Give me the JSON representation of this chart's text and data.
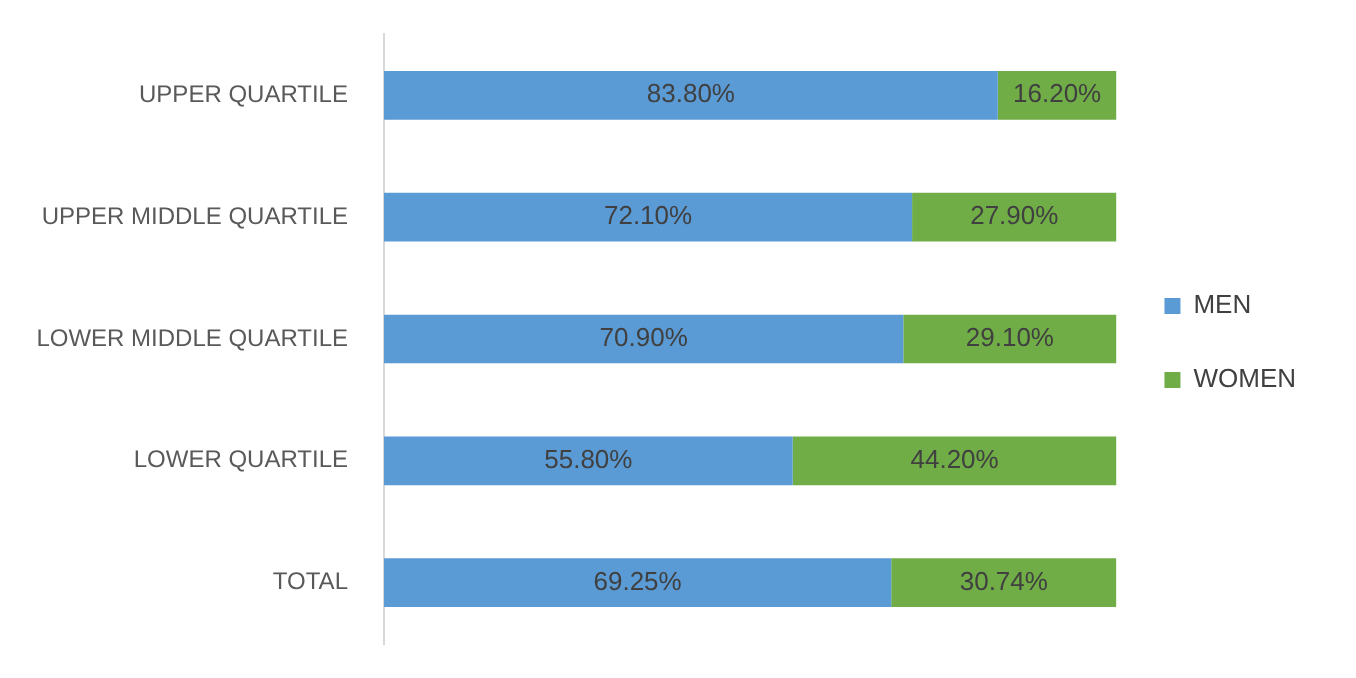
{
  "chart_data": {
    "type": "bar",
    "orientation": "horizontal",
    "stacked": true,
    "legend": "right",
    "categories": [
      "UPPER QUARTILE",
      "UPPER MIDDLE QUARTILE",
      "LOWER MIDDLE QUARTILE",
      "LOWER QUARTILE",
      "TOTAL"
    ],
    "series": [
      {
        "name": "MEN",
        "color": "#5b9bd5",
        "values": [
          83.8,
          72.1,
          70.9,
          55.8,
          69.25
        ],
        "value_labels": [
          "83.80%",
          "72.10%",
          "70.90%",
          "55.80%",
          "69.25%"
        ]
      },
      {
        "name": "WOMEN",
        "color": "#70ad47",
        "values": [
          16.2,
          27.9,
          29.1,
          44.2,
          30.74
        ],
        "value_labels": [
          "16.20%",
          "27.90%",
          "29.10%",
          "44.20%",
          "30.74%"
        ]
      }
    ]
  }
}
